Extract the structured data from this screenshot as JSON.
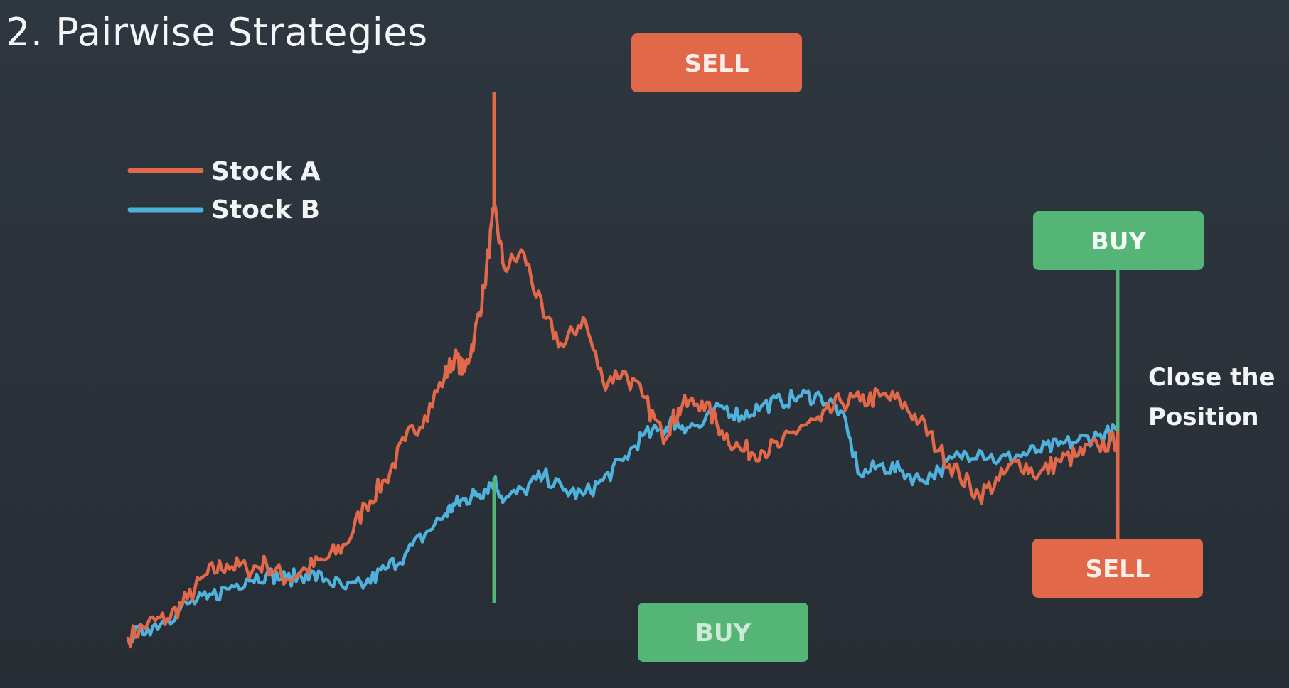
{
  "slide": {
    "title": "2. Pairwise Strategies"
  },
  "colors": {
    "stock_a": "#e2684a",
    "stock_b": "#4fb2dc",
    "sell_box": "#e2684a",
    "buy_box": "#55b576",
    "sell_text": "#fbeee9",
    "buy_text": "#cfe9d6",
    "buy_text_top": "#f4fbf6",
    "background": "#2b323a"
  },
  "annotations": {
    "sell_top": "SELL",
    "buy_bottom": "BUY",
    "buy_right": "BUY",
    "sell_right": "SELL",
    "close_line1": "Close the",
    "close_line2": "Position"
  },
  "chart_data": {
    "type": "line",
    "x": [
      0,
      20,
      40,
      60,
      80,
      100,
      120,
      140,
      160,
      180,
      200,
      220,
      240,
      260,
      280,
      300,
      320,
      330,
      340,
      350,
      360,
      370,
      380,
      400,
      420,
      440,
      460,
      480,
      500,
      520,
      540,
      550,
      560,
      580,
      600,
      620,
      640,
      660,
      680,
      700,
      720,
      740,
      760,
      780,
      800,
      820,
      840,
      860,
      880,
      900,
      920,
      940,
      960,
      980,
      1000
    ],
    "xlim": [
      0,
      1000
    ],
    "ylim": [
      0,
      100
    ],
    "legend": "top-left",
    "grid": false,
    "series": [
      {
        "name": "Stock A",
        "color": "#e2684a",
        "values": [
          1,
          4,
          5,
          9,
          14,
          16,
          15,
          16,
          13,
          15,
          17,
          20,
          28,
          33,
          41,
          46,
          54,
          58,
          55,
          62,
          72,
          88,
          76,
          79,
          66,
          60,
          66,
          53,
          55,
          50,
          42,
          45,
          48,
          49,
          43,
          39,
          39,
          40,
          44,
          45,
          49,
          49,
          50,
          49,
          45,
          39,
          34,
          30,
          33,
          37,
          34,
          37,
          38,
          40,
          41
        ]
      },
      {
        "name": "Stock B",
        "color": "#4fb2dc",
        "values": [
          1,
          3,
          5,
          8,
          9,
          11,
          13,
          14,
          13,
          14,
          13,
          11,
          12,
          15,
          18,
          22,
          26,
          28,
          29,
          30,
          31,
          33,
          29,
          31,
          34,
          31,
          30,
          33,
          37,
          42,
          43,
          45,
          44,
          44,
          48,
          46,
          48,
          49,
          50,
          50,
          47,
          34,
          36,
          35,
          33,
          35,
          38,
          39,
          37,
          38,
          39,
          40,
          41,
          42,
          43
        ]
      }
    ],
    "markers": [
      {
        "label": "SELL",
        "series": "Stock A",
        "x": 370,
        "position": "above"
      },
      {
        "label": "BUY",
        "series": "Stock B",
        "x": 370,
        "position": "below"
      },
      {
        "label": "BUY",
        "series": "Stock A",
        "x": 1000,
        "position": "above"
      },
      {
        "label": "SELL",
        "series": "Stock B",
        "x": 1000,
        "position": "below"
      }
    ]
  }
}
